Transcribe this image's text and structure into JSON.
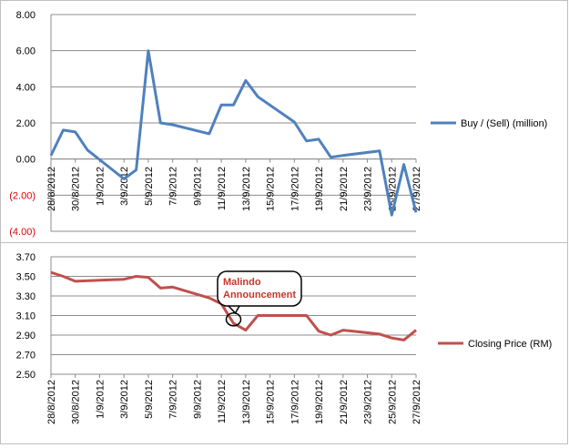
{
  "chart_data": [
    {
      "type": "line",
      "x_dates": [
        "28/8/2012",
        "29/8/2012",
        "30/8/2012",
        "31/8/2012",
        "3/9/2012",
        "4/9/2012",
        "5/9/2012",
        "6/9/2012",
        "7/9/2012",
        "10/9/2012",
        "11/9/2012",
        "12/9/2012",
        "13/9/2012",
        "14/9/2012",
        "17/9/2012",
        "18/9/2012",
        "19/9/2012",
        "20/9/2012",
        "21/9/2012",
        "24/9/2012",
        "25/9/2012",
        "26/9/2012",
        "27/9/2012"
      ],
      "series": [
        {
          "name": "Buy / (Sell) (million)",
          "color": "#4f81bd",
          "values": [
            0.2,
            1.6,
            1.5,
            0.5,
            -1.1,
            -0.6,
            6.0,
            2.0,
            1.9,
            1.4,
            3.0,
            3.0,
            4.35,
            3.45,
            2.05,
            1.0,
            1.1,
            0.1,
            0.2,
            0.45,
            -3.1,
            -0.3,
            -2.95
          ]
        }
      ],
      "ylim": [
        -4,
        8
      ],
      "y_ticks": [
        "(4.00)",
        "(2.00)",
        "0.00",
        "2.00",
        "4.00",
        "6.00",
        "8.00"
      ],
      "x_tick_labels": [
        "28/8/2012",
        "30/8/2012",
        "1/9/2012",
        "3/9/2012",
        "5/9/2012",
        "7/9/2012",
        "9/9/2012",
        "11/9/2012",
        "13/9/2012",
        "15/9/2012",
        "17/9/2012",
        "19/9/2012",
        "21/9/2012",
        "23/9/2012",
        "25/9/2012",
        "27/9/2012"
      ],
      "grid": true,
      "legend": "right"
    },
    {
      "type": "line",
      "x_dates": [
        "28/8/2012",
        "29/8/2012",
        "30/8/2012",
        "3/9/2012",
        "4/9/2012",
        "5/9/2012",
        "6/9/2012",
        "7/9/2012",
        "10/9/2012",
        "11/9/2012",
        "12/9/2012",
        "13/9/2012",
        "14/9/2012",
        "17/9/2012",
        "18/9/2012",
        "19/9/2012",
        "20/9/2012",
        "21/9/2012",
        "24/9/2012",
        "25/9/2012",
        "26/9/2012",
        "27/9/2012"
      ],
      "series": [
        {
          "name": "Closing Price (RM)",
          "color": "#c0504d",
          "values": [
            3.54,
            3.5,
            3.45,
            3.47,
            3.5,
            3.49,
            3.38,
            3.39,
            3.28,
            3.22,
            3.02,
            2.95,
            3.1,
            3.1,
            3.1,
            2.94,
            2.9,
            2.95,
            2.91,
            2.87,
            2.85,
            2.95
          ]
        }
      ],
      "ylim": [
        2.5,
        3.7
      ],
      "y_ticks": [
        "2.50",
        "2.70",
        "2.90",
        "3.10",
        "3.30",
        "3.50",
        "3.70"
      ],
      "x_tick_labels": [
        "28/8/2012",
        "30/8/2012",
        "1/9/2012",
        "3/9/2012",
        "5/9/2012",
        "7/9/2012",
        "9/9/2012",
        "11/9/2012",
        "13/9/2012",
        "15/9/2012",
        "17/9/2012",
        "19/9/2012",
        "21/9/2012",
        "23/9/2012",
        "25/9/2012",
        "27/9/2012"
      ],
      "grid": true,
      "legend": "right",
      "annotation": {
        "text_lines": [
          "Malindo",
          "Announcement"
        ],
        "color": "#c0392b",
        "date": "12/9/2012",
        "value": 3.06
      }
    }
  ]
}
